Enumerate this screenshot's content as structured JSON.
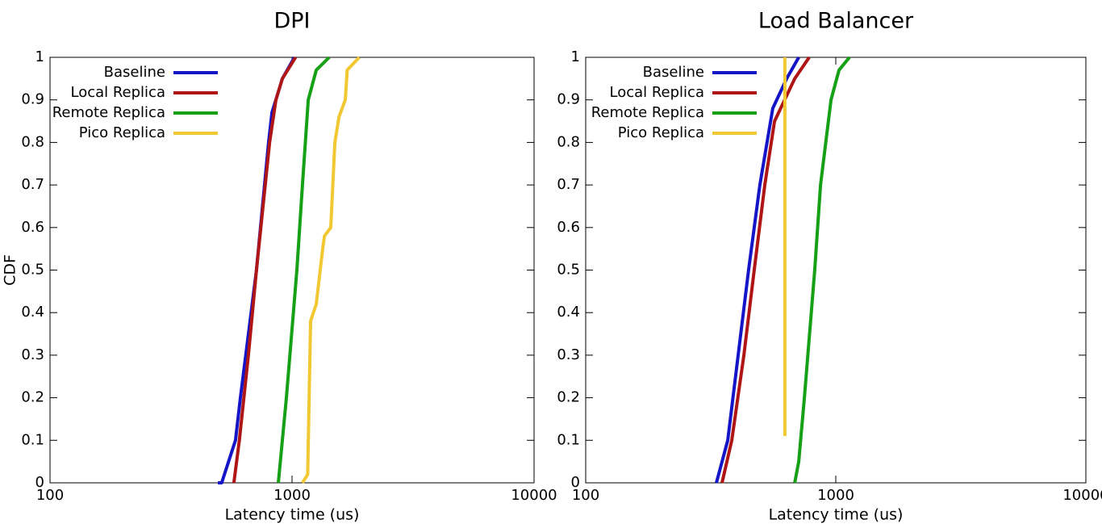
{
  "chart_data": [
    {
      "type": "line",
      "title": "DPI",
      "x_label": "Latency time (us)",
      "y_label": "CDF",
      "xscale": "log",
      "xlim": [
        100,
        10000
      ],
      "xticks": [
        100,
        1000,
        10000
      ],
      "ylim": [
        0,
        1
      ],
      "yticks": [
        0,
        0.1,
        0.2,
        0.3,
        0.4,
        0.5,
        0.6,
        0.7,
        0.8,
        0.9,
        1
      ],
      "legend": "upper left",
      "series": [
        {
          "name": "Baseline",
          "color": "#1515c8",
          "x": [
            494,
            512,
            584,
            612,
            713,
            800,
            826,
            912,
            1023
          ],
          "values": [
            0,
            0,
            0.1,
            0.2,
            0.5,
            0.8,
            0.87,
            0.95,
            1
          ]
        },
        {
          "name": "Local Replica",
          "color": "#b01515",
          "x": [
            575,
            606,
            660,
            713,
            808,
            858,
            912,
            1034
          ],
          "values": [
            0,
            0.1,
            0.3,
            0.5,
            0.8,
            0.9,
            0.95,
            1
          ]
        },
        {
          "name": "Remote Replica",
          "color": "#15a015",
          "x": [
            878,
            912,
            948,
            1047,
            1104,
            1167,
            1259,
            1424
          ],
          "values": [
            0,
            0.1,
            0.2,
            0.5,
            0.7,
            0.9,
            0.97,
            1
          ]
        },
        {
          "name": "Pico Replica",
          "color": "#f2c832",
          "x": [
            1104,
            1161,
            1193,
            1259,
            1339,
            1361,
            1445,
            1503,
            1563,
            1660,
            1690,
            1897
          ],
          "values": [
            0,
            0.02,
            0.38,
            0.42,
            0.55,
            0.58,
            0.6,
            0.8,
            0.86,
            0.9,
            0.97,
            1
          ]
        }
      ]
    },
    {
      "type": "line",
      "title": "Load Balancer",
      "x_label": "Latency time (us)",
      "xscale": "log",
      "xlim": [
        100,
        10000
      ],
      "xticks": [
        100,
        1000,
        10000
      ],
      "ylim": [
        0,
        1
      ],
      "yticks": [
        0,
        0.1,
        0.2,
        0.3,
        0.4,
        0.5,
        0.6,
        0.7,
        0.8,
        0.9,
        1
      ],
      "legend": "upper left",
      "series": [
        {
          "name": "Baseline",
          "color": "#1515c8",
          "x": [
            333,
            370,
            407,
            448,
            497,
            560,
            636,
            711
          ],
          "values": [
            0,
            0.1,
            0.3,
            0.5,
            0.7,
            0.88,
            0.95,
            1
          ]
        },
        {
          "name": "Local Replica",
          "color": "#b01515",
          "x": [
            351,
            384,
            429,
            472,
            520,
            569,
            685,
            783
          ],
          "values": [
            0,
            0.1,
            0.3,
            0.5,
            0.7,
            0.85,
            0.95,
            1
          ]
        },
        {
          "name": "Remote Replica",
          "color": "#15a015",
          "x": [
            685,
            711,
            749,
            824,
            869,
            957,
            1030,
            1135
          ],
          "values": [
            0,
            0.05,
            0.2,
            0.5,
            0.7,
            0.9,
            0.97,
            1
          ]
        },
        {
          "name": "Pico Replica",
          "color": "#f2c832",
          "x": [
            626,
            626
          ],
          "values": [
            0.11,
            1
          ]
        }
      ]
    }
  ]
}
